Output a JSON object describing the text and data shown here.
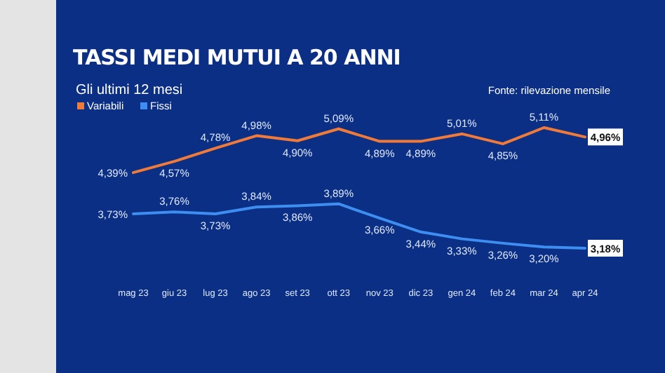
{
  "chart_data": {
    "type": "line",
    "title": "TASSI MEDI MUTUI A 20 ANNI",
    "subtitle": "Gli ultimi 12 mesi",
    "annotations": [
      "Fonte: rilevazione mensile"
    ],
    "categories": [
      "mag 23",
      "giu 23",
      "lug 23",
      "ago 23",
      "set 23",
      "ott 23",
      "nov 23",
      "dic 23",
      "gen 24",
      "feb 24",
      "mar 24",
      "apr 24"
    ],
    "series": [
      {
        "name": "Variabili",
        "color": "#f07a3a",
        "values": [
          4.39,
          4.57,
          4.78,
          4.98,
          4.9,
          5.09,
          4.89,
          4.89,
          5.01,
          4.85,
          5.11,
          4.96
        ],
        "value_labels": [
          "4,39%",
          "4,57%",
          "4,78%",
          "4,98%",
          "4,90%",
          "5,09%",
          "4,89%",
          "4,89%",
          "5,01%",
          "4,85%",
          "5,11%",
          "4,96%"
        ]
      },
      {
        "name": "Fissi",
        "color": "#3d8ef0",
        "values": [
          3.73,
          3.76,
          3.73,
          3.84,
          3.86,
          3.89,
          3.66,
          3.44,
          3.33,
          3.26,
          3.2,
          3.18
        ],
        "value_labels": [
          "3,73%",
          "3,76%",
          "3,73%",
          "3,84%",
          "3,86%",
          "3,89%",
          "3,66%",
          "3,44%",
          "3,33%",
          "3,26%",
          "3,20%",
          "3,18%"
        ]
      }
    ],
    "legend": "top left",
    "tick_labels": "x",
    "marker": "none"
  }
}
